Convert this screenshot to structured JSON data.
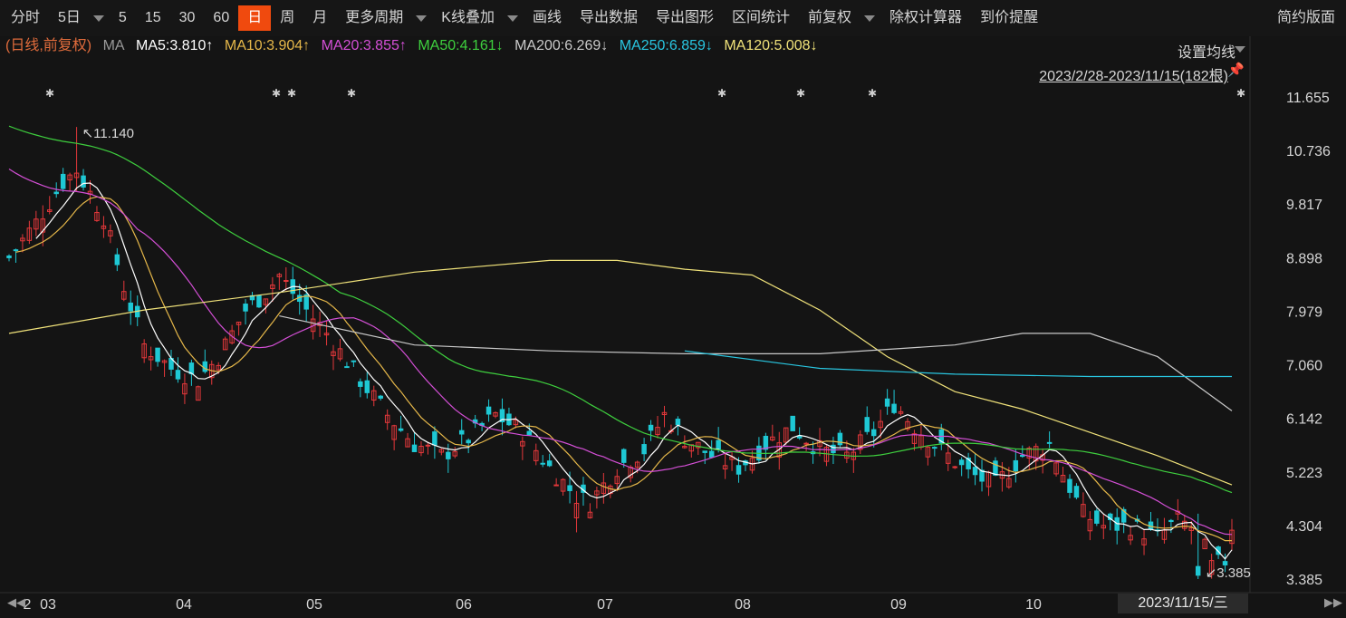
{
  "toolbar": {
    "items": [
      "分时",
      "5日",
      "",
      "5",
      "15",
      "30",
      "60",
      "日",
      "周",
      "月",
      "更多周期",
      "",
      "K线叠加",
      "",
      "画线",
      "导出数据",
      "导出图形",
      "区间统计",
      "前复权",
      "",
      "除权计算器",
      "到价提醒"
    ],
    "right": "简约版面"
  },
  "ma_bar": {
    "mode": "(日线,前复权)",
    "ma": "MA",
    "ma5": "MA5:3.810↑",
    "ma10": "MA10:3.904↑",
    "ma20": "MA20:3.855↑",
    "ma50": "MA50:4.161↓",
    "ma200": "MA200:6.269↓",
    "ma250": "MA250:6.859↓",
    "ma120": "MA120:5.008↓",
    "settings": "设置均线",
    "range": "2023/2/28-2023/11/15(182根)"
  },
  "colors": {
    "up": "#e5383b",
    "down": "#1ec8d4",
    "bg": "#141414",
    "ma5": "#ffffff",
    "ma10": "#e6b84a",
    "ma20": "#d44fd6",
    "ma50": "#3ecf3e",
    "ma120": "#f0e27a",
    "ma200": "#c9c9c9",
    "ma250": "#29c6e0",
    "mode": "#e06c3c"
  },
  "chart_data": {
    "type": "candlestick",
    "yticks": [
      "11.655",
      "10.736",
      "9.817",
      "8.898",
      "7.979",
      "7.060",
      "6.142",
      "5.223",
      "4.304",
      "3.385"
    ],
    "ylim": [
      3.385,
      11.655
    ],
    "xticks": [
      "2",
      "03",
      "04",
      "05",
      "06",
      "07",
      "08",
      "09",
      "10"
    ],
    "annotations": {
      "high": "11.140",
      "low": "3.385"
    },
    "date_label": "2023/11/15/三",
    "start_date": "2023/2/28",
    "end_date": "2023/11/15",
    "bars": 182,
    "key_points": [
      {
        "date": "2023/2/28",
        "open": 8.85,
        "close": 8.9
      },
      {
        "date": "2023/3/08",
        "open": 9.8,
        "close": 10.6,
        "high": 11.14
      },
      {
        "date": "2023/3/20",
        "open": 7.6,
        "close": 7.0
      },
      {
        "date": "2023/3/28",
        "open": 6.7,
        "close": 7.2
      },
      {
        "date": "2023/4/10",
        "open": 8.3,
        "close": 8.7
      },
      {
        "date": "2023/5/10",
        "open": 5.6,
        "close": 5.4
      },
      {
        "date": "2023/5/26",
        "open": 6.1,
        "close": 6.3
      },
      {
        "date": "2023/6/26",
        "open": 4.8,
        "close": 4.6
      },
      {
        "date": "2023/7/12",
        "open": 6.3,
        "close": 6.6
      },
      {
        "date": "2023/8/22",
        "open": 5.9,
        "close": 6.5
      },
      {
        "date": "2023/9/18",
        "open": 5.6,
        "close": 5.8
      },
      {
        "date": "2023/10/05",
        "open": 4.4,
        "close": 4.3
      },
      {
        "date": "2023/10/26",
        "open": 3.7,
        "close": 3.4,
        "low": 3.385
      },
      {
        "date": "2023/11/15",
        "open": 3.8,
        "close": 4.3
      }
    ],
    "ma_levels": {
      "ma5": 3.81,
      "ma10": 3.904,
      "ma20": 3.855,
      "ma50": 4.161,
      "ma120": 5.008,
      "ma200": 6.269,
      "ma250": 6.859
    }
  }
}
